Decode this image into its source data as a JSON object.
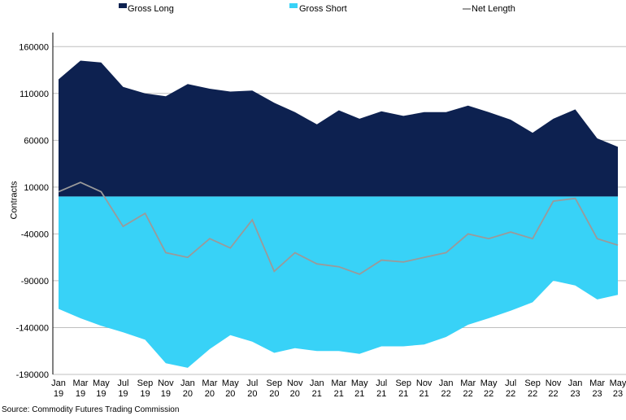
{
  "legend": {
    "gross_long": "Gross Long",
    "gross_short": "Gross Short",
    "net_length": "Net Length"
  },
  "source": "Source: Commodity Futures Trading Commission",
  "colors": {
    "gross_long": "#0d2150",
    "gross_short": "#38d2f7",
    "net_length": "#9a9a9a"
  },
  "chart_data": {
    "type": "area",
    "ylabel": "Contracts",
    "ylim": [
      -190000,
      175000
    ],
    "yticks": [
      160000,
      110000,
      60000,
      10000,
      -40000,
      -90000,
      -140000,
      -190000
    ],
    "xticks": [
      {
        "month": "Jan",
        "year": "19"
      },
      {
        "month": "Mar",
        "year": "19"
      },
      {
        "month": "May",
        "year": "19"
      },
      {
        "month": "Jul",
        "year": "19"
      },
      {
        "month": "Sep",
        "year": "19"
      },
      {
        "month": "Nov",
        "year": "19"
      },
      {
        "month": "Jan",
        "year": "20"
      },
      {
        "month": "Mar",
        "year": "20"
      },
      {
        "month": "May",
        "year": "20"
      },
      {
        "month": "Jul",
        "year": "20"
      },
      {
        "month": "Sep",
        "year": "20"
      },
      {
        "month": "Nov",
        "year": "20"
      },
      {
        "month": "Jan",
        "year": "21"
      },
      {
        "month": "Mar",
        "year": "21"
      },
      {
        "month": "May",
        "year": "21"
      },
      {
        "month": "Jul",
        "year": "21"
      },
      {
        "month": "Sep",
        "year": "21"
      },
      {
        "month": "Nov",
        "year": "21"
      },
      {
        "month": "Jan",
        "year": "22"
      },
      {
        "month": "Mar",
        "year": "22"
      },
      {
        "month": "May",
        "year": "22"
      },
      {
        "month": "Jul",
        "year": "22"
      },
      {
        "month": "Sep",
        "year": "22"
      },
      {
        "month": "Nov",
        "year": "22"
      },
      {
        "month": "Jan",
        "year": "23"
      },
      {
        "month": "Mar",
        "year": "23"
      },
      {
        "month": "May",
        "year": "23"
      }
    ],
    "x": [
      2019.0,
      2019.17,
      2019.33,
      2019.5,
      2019.67,
      2019.83,
      2020.0,
      2020.17,
      2020.33,
      2020.5,
      2020.67,
      2020.83,
      2021.0,
      2021.17,
      2021.33,
      2021.5,
      2021.67,
      2021.83,
      2022.0,
      2022.17,
      2022.33,
      2022.5,
      2022.67,
      2022.83,
      2023.0,
      2023.17,
      2023.33
    ],
    "series": [
      {
        "name": "Gross Long",
        "values": [
          125000,
          145000,
          143000,
          117000,
          110000,
          107000,
          120000,
          115000,
          112000,
          113000,
          100000,
          90000,
          77000,
          92000,
          83000,
          91000,
          86000,
          90000,
          90000,
          97000,
          90000,
          82000,
          68000,
          83000,
          93000,
          62000,
          53000
        ]
      },
      {
        "name": "Gross Short",
        "values": [
          -120000,
          -130000,
          -138000,
          -145000,
          -153000,
          -178000,
          -183000,
          -163000,
          -148000,
          -155000,
          -167000,
          -162000,
          -165000,
          -165000,
          -168000,
          -160000,
          -160000,
          -158000,
          -150000,
          -137000,
          -130000,
          -122000,
          -113000,
          -90000,
          -95000,
          -110000,
          -105000
        ]
      },
      {
        "name": "Net Length",
        "values": [
          5000,
          15000,
          5000,
          -32000,
          -18000,
          -60000,
          -65000,
          -45000,
          -55000,
          -25000,
          -80000,
          -60000,
          -72000,
          -75000,
          -83000,
          -68000,
          -70000,
          -65000,
          -60000,
          -40000,
          -45000,
          -38000,
          -45000,
          -5000,
          -2000,
          -45000,
          -52000
        ]
      }
    ]
  }
}
